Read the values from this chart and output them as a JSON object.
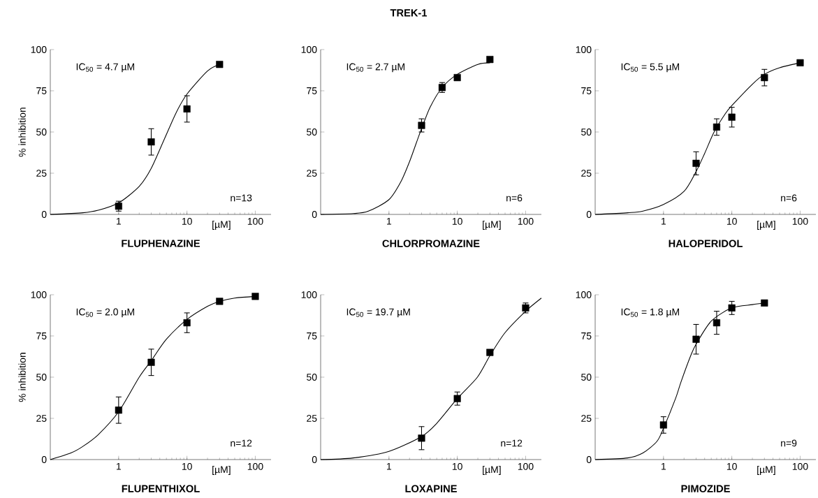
{
  "chart_data": [
    {
      "type": "scatter",
      "xlabel": "FLUPHENAZINE",
      "ylabel": "% inhibition",
      "annotations": [
        "IC$_{50}$ = 4.7 µM",
        "n=13",
        "[µM]"
      ],
      "log": "x",
      "xlim": [
        0.1,
        170
      ],
      "ylim": [
        0,
        100
      ],
      "xticks": [
        1,
        10,
        100
      ],
      "yticks": [
        0,
        25,
        50,
        75,
        100
      ],
      "series": [
        {
          "marker": "square",
          "color": "#000000",
          "x": [
            1,
            3,
            10,
            30
          ],
          "values": [
            5,
            44,
            64,
            91
          ],
          "errors": [
            3,
            8,
            8,
            null
          ]
        },
        {
          "type": "line",
          "marker": "none",
          "line_style": "solid",
          "color": "#000000",
          "x": [
            0.1,
            0.3,
            0.5,
            1,
            2,
            3,
            4.7,
            7,
            10,
            20,
            30
          ],
          "values": [
            0,
            1,
            2.5,
            7,
            17,
            28,
            46,
            62,
            73,
            87,
            91
          ]
        }
      ]
    },
    {
      "type": "scatter",
      "title": "TREK-1",
      "xlabel": "CHLORPROMAZINE",
      "annotations": [
        "IC$_{50}$ = 2.7 µM",
        "n=6",
        "[µM]"
      ],
      "log": "x",
      "xlim": [
        0.1,
        170
      ],
      "ylim": [
        0,
        100
      ],
      "xticks": [
        1,
        10,
        100
      ],
      "yticks": [
        0,
        25,
        50,
        75,
        100
      ],
      "series": [
        {
          "marker": "square",
          "color": "#000000",
          "x": [
            3,
            6,
            10,
            30
          ],
          "values": [
            54,
            77,
            83,
            94
          ],
          "errors": [
            4,
            3,
            null,
            null
          ]
        },
        {
          "type": "line",
          "marker": "none",
          "line_style": "solid",
          "color": "#000000",
          "x": [
            0.1,
            0.3,
            0.5,
            1,
            1.5,
            2,
            2.7,
            3,
            4,
            6,
            10,
            20,
            30
          ],
          "values": [
            0,
            0.5,
            2,
            9,
            20,
            32,
            47,
            52,
            65,
            77,
            85,
            91,
            92
          ]
        }
      ]
    },
    {
      "type": "scatter",
      "xlabel": "HALOPERIDOL",
      "annotations": [
        "IC$_{50}$ = 5.5 µM",
        "n=6",
        "[µM]"
      ],
      "log": "x",
      "xlim": [
        0.1,
        170
      ],
      "ylim": [
        0,
        100
      ],
      "xticks": [
        1,
        10,
        100
      ],
      "yticks": [
        0,
        25,
        50,
        75,
        100
      ],
      "series": [
        {
          "marker": "square",
          "color": "#000000",
          "x": [
            3,
            6,
            10,
            30,
            100
          ],
          "values": [
            31,
            53,
            59,
            83,
            92
          ],
          "errors": [
            7,
            5,
            6,
            5,
            null
          ]
        },
        {
          "type": "line",
          "marker": "none",
          "line_style": "solid",
          "color": "#000000",
          "x": [
            0.1,
            0.3,
            0.5,
            1,
            2,
            3,
            4,
            5.5,
            8,
            10,
            20,
            30,
            50,
            100
          ],
          "values": [
            0,
            1,
            2,
            6,
            14,
            26,
            37,
            50,
            61,
            66,
            79,
            85,
            89,
            92
          ]
        }
      ]
    },
    {
      "type": "scatter",
      "xlabel": "FLUPENTHIXOL",
      "ylabel": "% inhibition",
      "annotations": [
        "IC$_{50}$ = 2.0 µM",
        "n=12",
        "[µM]"
      ],
      "log": "x",
      "xlim": [
        0.1,
        170
      ],
      "ylim": [
        0,
        100
      ],
      "xticks": [
        1,
        10,
        100
      ],
      "yticks": [
        0,
        25,
        50,
        75,
        100
      ],
      "series": [
        {
          "marker": "square",
          "color": "#000000",
          "x": [
            1,
            3,
            10,
            30,
            100
          ],
          "values": [
            30,
            59,
            83,
            96,
            99
          ],
          "errors": [
            8,
            8,
            6,
            null,
            null
          ]
        },
        {
          "type": "line",
          "marker": "none",
          "line_style": "solid",
          "color": "#000000",
          "x": [
            0.1,
            0.2,
            0.3,
            0.5,
            1,
            2,
            3,
            5,
            10,
            20,
            30,
            50,
            100
          ],
          "values": [
            0,
            4,
            8,
            15,
            29,
            50,
            60,
            73,
            85,
            93,
            96,
            98,
            99
          ]
        }
      ]
    },
    {
      "type": "scatter",
      "xlabel": "LOXAPINE",
      "annotations": [
        "IC$_{50}$ = 19.7 µM",
        "n=12",
        "[µM]"
      ],
      "log": "x",
      "xlim": [
        0.1,
        170
      ],
      "ylim": [
        0,
        100
      ],
      "xticks": [
        1,
        10,
        100
      ],
      "yticks": [
        0,
        25,
        50,
        75,
        100
      ],
      "series": [
        {
          "marker": "square",
          "color": "#000000",
          "x": [
            3,
            10,
            30,
            100
          ],
          "values": [
            13,
            37,
            65,
            92
          ],
          "errors": [
            7,
            4,
            null,
            3
          ]
        },
        {
          "type": "line",
          "marker": "none",
          "line_style": "solid",
          "color": "#000000",
          "x": [
            0.1,
            0.3,
            1,
            3,
            5,
            10,
            19.7,
            30,
            50,
            100,
            170
          ],
          "values": [
            0,
            1,
            5,
            14,
            22,
            37,
            50,
            63,
            77,
            90,
            98
          ]
        }
      ]
    },
    {
      "type": "scatter",
      "xlabel": "PIMOZIDE",
      "annotations": [
        "IC$_{50}$ = 1.8 µM",
        "n=9",
        "[µM]"
      ],
      "log": "x",
      "xlim": [
        0.1,
        170
      ],
      "ylim": [
        0,
        100
      ],
      "xticks": [
        1,
        10,
        100
      ],
      "yticks": [
        0,
        25,
        50,
        75,
        100
      ],
      "series": [
        {
          "marker": "square",
          "color": "#000000",
          "x": [
            1,
            3,
            6,
            10,
            30
          ],
          "values": [
            21,
            73,
            83,
            92,
            95
          ],
          "errors": [
            5,
            9,
            7,
            4,
            null
          ]
        },
        {
          "type": "line",
          "marker": "none",
          "line_style": "solid",
          "color": "#000000",
          "x": [
            0.1,
            0.3,
            0.5,
            0.8,
            1,
            1.5,
            1.8,
            2.5,
            3,
            5,
            10,
            20,
            30
          ],
          "values": [
            0,
            1,
            4,
            11,
            19,
            37,
            47,
            63,
            70,
            84,
            92,
            94,
            95
          ]
        }
      ]
    }
  ]
}
